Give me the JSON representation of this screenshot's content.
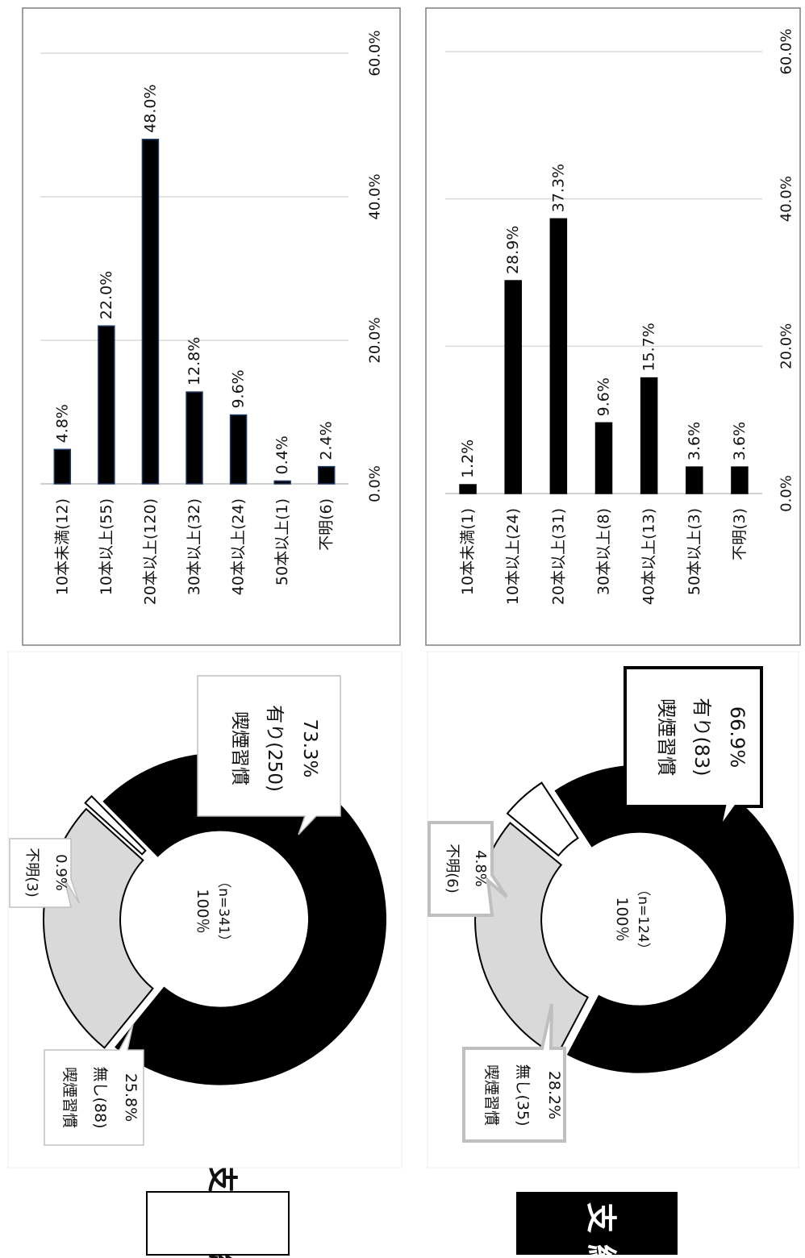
{
  "colors": {
    "bar": "#000000",
    "bar_outline": "#1f3864",
    "grid": "#d9d9d9",
    "panel_border": "#7f7f7f",
    "smoker": "#000000",
    "nonsmoker": "#d9d9d9",
    "unknown": "#ffffff",
    "label_gray": "#bfbfbf"
  },
  "groups": {
    "paid": {
      "label": "支　　給"
    },
    "unpaid": {
      "label": "不支給"
    }
  },
  "chart_data": [
    {
      "id": "paid-donut",
      "type": "pie",
      "style": "donut",
      "center_line1": "100％",
      "center_line2": "（n=341）",
      "slices": [
        {
          "label_line1": "喫煙習慣",
          "label_line2": "有り(250)",
          "pct": "73.3%",
          "value": 73.3,
          "color": "#000000"
        },
        {
          "label_line1": "喫煙習慣",
          "label_line2": "無し(88)",
          "pct": "25.8%",
          "value": 25.8,
          "color": "#d9d9d9"
        },
        {
          "label_line1": "",
          "label_line2": "不明(3)",
          "pct": "0.9%",
          "value": 0.9,
          "color": "#ffffff"
        }
      ]
    },
    {
      "id": "paid-bar",
      "type": "bar",
      "orientation": "horizontal",
      "categories": [
        "10本未満(12)",
        "10本以上(55)",
        "20本以上(120)",
        "30本以上(32)",
        "40本以上(24)",
        "50本以上(1)",
        "不明(6)"
      ],
      "values": [
        4.8,
        22.0,
        48.0,
        12.8,
        9.6,
        0.4,
        2.4
      ],
      "labels": [
        "4.8%",
        "22.0%",
        "48.0%",
        "12.8%",
        "9.6%",
        "0.4%",
        "2.4%"
      ],
      "ticks": [
        "0.0%",
        "20.0%",
        "40.0%",
        "60.0%"
      ],
      "xlim": [
        0,
        60
      ],
      "grid": true
    },
    {
      "id": "unpaid-donut",
      "type": "pie",
      "style": "donut",
      "center_line1": "100％",
      "center_line2": "（n=124）",
      "slices": [
        {
          "label_line1": "喫煙習慣",
          "label_line2": "有り(83)",
          "pct": "66.9%",
          "value": 66.9,
          "color": "#000000"
        },
        {
          "label_line1": "喫煙習慣",
          "label_line2": "無し(35)",
          "pct": "28.2%",
          "value": 28.2,
          "color": "#d9d9d9"
        },
        {
          "label_line1": "",
          "label_line2": "不明(6)",
          "pct": "4.8%",
          "value": 4.8,
          "color": "#ffffff"
        }
      ]
    },
    {
      "id": "unpaid-bar",
      "type": "bar",
      "orientation": "horizontal",
      "categories": [
        "10本未満(1)",
        "10本以上(24)",
        "20本以上(31)",
        "30本以上(8)",
        "40本以上(13)",
        "50本以上(3)",
        "不明(3)"
      ],
      "values": [
        1.2,
        28.9,
        37.3,
        9.6,
        15.7,
        3.6,
        3.6
      ],
      "labels": [
        "1.2%",
        "28.9%",
        "37.3%",
        "9.6%",
        "15.7%",
        "3.6%",
        "3.6%"
      ],
      "ticks": [
        "0.0%",
        "20.0%",
        "40.0%",
        "60.0%"
      ],
      "xlim": [
        0,
        60
      ],
      "grid": true
    }
  ]
}
